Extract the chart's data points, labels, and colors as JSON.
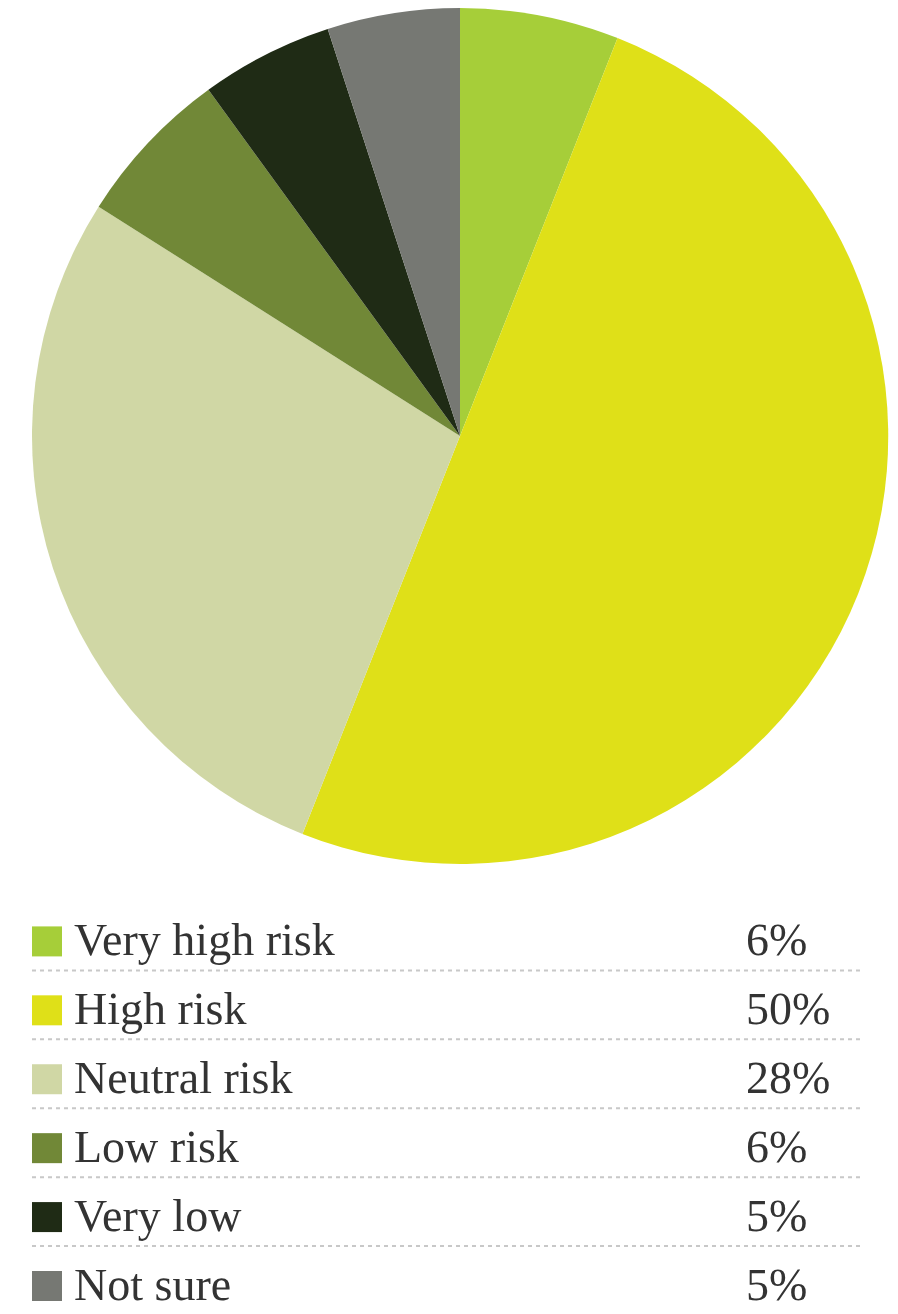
{
  "chart_data": {
    "type": "pie",
    "categories": [
      "Very high risk",
      "High risk",
      "Neutral risk",
      "Low risk",
      "Very low",
      "Not sure"
    ],
    "values": [
      6,
      50,
      28,
      6,
      5,
      5
    ],
    "colors": [
      "#a6ce39",
      "#dfe018",
      "#d0d7a5",
      "#718837",
      "#1f2b15",
      "#767873"
    ],
    "value_labels": [
      "6%",
      "50%",
      "28%",
      "6%",
      "5%",
      "5%"
    ],
    "legend": "bottom"
  }
}
